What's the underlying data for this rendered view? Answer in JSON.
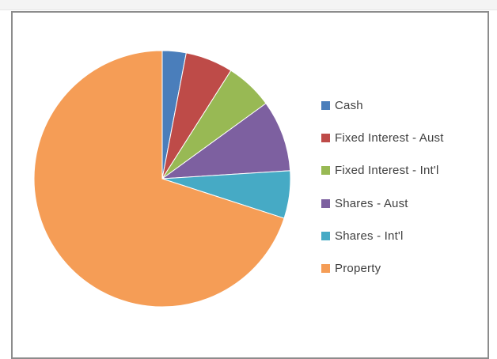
{
  "chart_data": {
    "type": "pie",
    "title": "",
    "legend_position": "right",
    "series": [
      {
        "name": "Cash",
        "value": 3,
        "color": "#4a7ebb"
      },
      {
        "name": "Fixed Interest - Aust",
        "value": 6,
        "color": "#be4b48"
      },
      {
        "name": "Fixed Interest - Int'l",
        "value": 6,
        "color": "#98b954"
      },
      {
        "name": "Shares - Aust",
        "value": 9,
        "color": "#7d60a0"
      },
      {
        "name": "Shares - Int'l",
        "value": 6,
        "color": "#46aac5"
      },
      {
        "name": "Property",
        "value": 70,
        "color": "#f59d56"
      }
    ]
  }
}
